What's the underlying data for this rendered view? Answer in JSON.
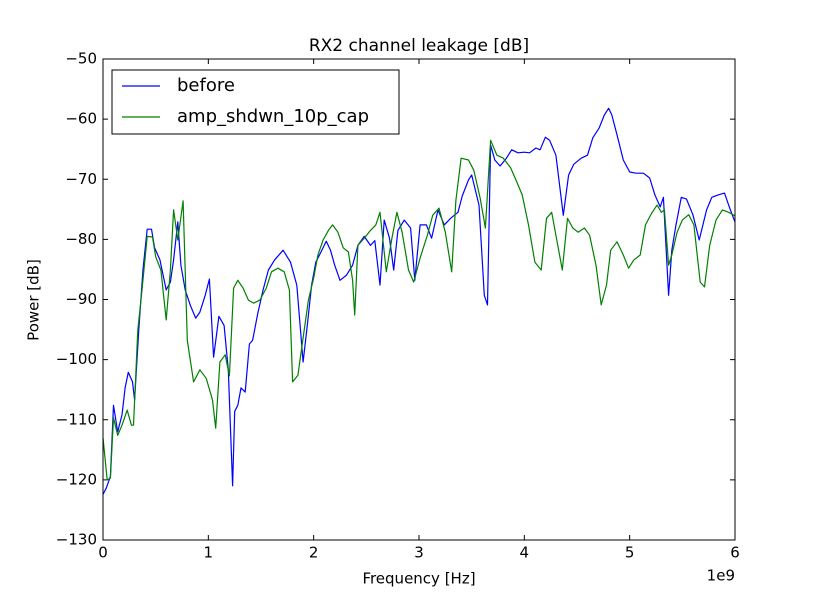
{
  "chart_data": {
    "type": "line",
    "title": "RX2 channel leakage [dB]",
    "xlabel": "Frequency [Hz]",
    "ylabel": "Power [dB]",
    "x_offset_label": "1e9",
    "xlim": [
      0,
      6000000000.0
    ],
    "ylim": [
      -130,
      -50
    ],
    "xticks": [
      0,
      {
        "value": 1000000000.0,
        "label": "1"
      },
      {
        "value": 2000000000.0,
        "label": "2"
      },
      {
        "value": 3000000000.0,
        "label": "3"
      },
      {
        "value": 4000000000.0,
        "label": "4"
      },
      {
        "value": 5000000000.0,
        "label": "5"
      },
      {
        "value": 6000000000.0,
        "label": "6"
      }
    ],
    "yticks": [
      {
        "value": -130,
        "label": "−130"
      },
      {
        "value": -120,
        "label": "−120"
      },
      {
        "value": -110,
        "label": "−110"
      },
      {
        "value": -100,
        "label": "−100"
      },
      {
        "value": -90,
        "label": "−90"
      },
      {
        "value": -80,
        "label": "−80"
      },
      {
        "value": -70,
        "label": "−70"
      },
      {
        "value": -60,
        "label": "−60"
      },
      {
        "value": -50,
        "label": "−50"
      }
    ],
    "legend": "upper left",
    "series": [
      {
        "name": "before",
        "color": "#0000ff",
        "x": [
          0,
          30000000.0,
          70000000.0,
          100000000.0,
          140000000.0,
          180000000.0,
          210000000.0,
          240000000.0,
          280000000.0,
          300000000.0,
          340000000.0,
          380000000.0,
          420000000.0,
          460000000.0,
          490000000.0,
          540000000.0,
          600000000.0,
          640000000.0,
          670000000.0,
          710000000.0,
          740000000.0,
          780000000.0,
          830000000.0,
          880000000.0,
          920000000.0,
          970000000.0,
          1010000000.0,
          1050000000.0,
          1100000000.0,
          1150000000.0,
          1190000000.0,
          1230000000.0,
          1250000000.0,
          1280000000.0,
          1310000000.0,
          1350000000.0,
          1390000000.0,
          1420000000.0,
          1470000000.0,
          1520000000.0,
          1570000000.0,
          1630000000.0,
          1710000000.0,
          1780000000.0,
          1840000000.0,
          1900000000.0,
          1940000000.0,
          1980000000.0,
          2020000000.0,
          2070000000.0,
          2120000000.0,
          2160000000.0,
          2200000000.0,
          2250000000.0,
          2310000000.0,
          2370000000.0,
          2420000000.0,
          2480000000.0,
          2540000000.0,
          2580000000.0,
          2630000000.0,
          2670000000.0,
          2720000000.0,
          2760000000.0,
          2800000000.0,
          2860000000.0,
          2920000000.0,
          2960000000.0,
          3010000000.0,
          3070000000.0,
          3120000000.0,
          3180000000.0,
          3240000000.0,
          3300000000.0,
          3370000000.0,
          3410000000.0,
          3470000000.0,
          3500000000.0,
          3570000000.0,
          3620000000.0,
          3650000000.0,
          3680000000.0,
          3720000000.0,
          3770000000.0,
          3830000000.0,
          3880000000.0,
          3940000000.0,
          4000000000.0,
          4050000000.0,
          4110000000.0,
          4150000000.0,
          4200000000.0,
          4240000000.0,
          4300000000.0,
          4370000000.0,
          4420000000.0,
          4470000000.0,
          4540000000.0,
          4600000000.0,
          4650000000.0,
          4710000000.0,
          4760000000.0,
          4800000000.0,
          4830000000.0,
          4880000000.0,
          4940000000.0,
          5000000000.0,
          5060000000.0,
          5130000000.0,
          5190000000.0,
          5240000000.0,
          5290000000.0,
          5320000000.0,
          5370000000.0,
          5400000000.0,
          5440000000.0,
          5490000000.0,
          5540000000.0,
          5600000000.0,
          5660000000.0,
          5730000000.0,
          5780000000.0,
          5840000000.0,
          5900000000.0,
          5950000000.0,
          6000000000.0
        ],
        "values": [
          -122.4,
          -121.4,
          -119.4,
          -107.6,
          -112,
          -109.2,
          -104.7,
          -102.1,
          -103.7,
          -106.7,
          -95,
          -85,
          -78.3,
          -78.3,
          -81.4,
          -83.4,
          -88.4,
          -87.1,
          -83.4,
          -77.1,
          -84.3,
          -88.4,
          -91,
          -93.1,
          -92.1,
          -89.3,
          -86.6,
          -99.6,
          -92.8,
          -94.3,
          -101.7,
          -121,
          -108.6,
          -107.6,
          -104.7,
          -105.4,
          -97.4,
          -96.8,
          -92.3,
          -88.4,
          -85.1,
          -83.4,
          -81.8,
          -83.8,
          -87.6,
          -100.4,
          -94.3,
          -87.6,
          -83.8,
          -82.1,
          -80.3,
          -81.8,
          -84.3,
          -86.8,
          -86,
          -84.3,
          -81,
          -79.5,
          -81,
          -80.2,
          -87.6,
          -76.8,
          -79.8,
          -85.1,
          -78.5,
          -76.8,
          -78.1,
          -86.8,
          -77.6,
          -77.6,
          -79.8,
          -75.1,
          -77.6,
          -76.5,
          -75.5,
          -72.8,
          -70.1,
          -69.3,
          -74.3,
          -89.3,
          -90.9,
          -64.3,
          -66.8,
          -67.8,
          -66.5,
          -65.1,
          -65.6,
          -65.5,
          -65.6,
          -64.8,
          -65.1,
          -63,
          -63.5,
          -66,
          -76,
          -69.3,
          -67.5,
          -66.5,
          -66,
          -63.1,
          -61.5,
          -59.3,
          -58.2,
          -59.3,
          -62.6,
          -66.8,
          -68.8,
          -69,
          -69,
          -69.8,
          -72.6,
          -74.6,
          -73,
          -89.3,
          -81.8,
          -77.6,
          -73,
          -73.3,
          -75.9,
          -80.1,
          -75.1,
          -73,
          -72.6,
          -72.3,
          -74.8,
          -77.1
        ]
      },
      {
        "name": "amp_shdwn_10p_cap",
        "color": "#008000",
        "x": [
          0,
          40000000.0,
          70000000.0,
          100000000.0,
          140000000.0,
          180000000.0,
          230000000.0,
          270000000.0,
          290000000.0,
          330000000.0,
          370000000.0,
          420000000.0,
          470000000.0,
          500000000.0,
          550000000.0,
          600000000.0,
          640000000.0,
          670000000.0,
          710000000.0,
          760000000.0,
          800000000.0,
          860000000.0,
          920000000.0,
          980000000.0,
          1040000000.0,
          1070000000.0,
          1110000000.0,
          1160000000.0,
          1200000000.0,
          1240000000.0,
          1280000000.0,
          1330000000.0,
          1380000000.0,
          1430000000.0,
          1490000000.0,
          1550000000.0,
          1600000000.0,
          1660000000.0,
          1720000000.0,
          1770000000.0,
          1800000000.0,
          1850000000.0,
          1900000000.0,
          1950000000.0,
          2000000000.0,
          2040000000.0,
          2090000000.0,
          2140000000.0,
          2180000000.0,
          2230000000.0,
          2280000000.0,
          2330000000.0,
          2370000000.0,
          2390000000.0,
          2420000000.0,
          2480000000.0,
          2540000000.0,
          2590000000.0,
          2630000000.0,
          2690000000.0,
          2740000000.0,
          2790000000.0,
          2840000000.0,
          2900000000.0,
          2950000000.0,
          3010000000.0,
          3080000000.0,
          3130000000.0,
          3190000000.0,
          3250000000.0,
          3310000000.0,
          3350000000.0,
          3400000000.0,
          3470000000.0,
          3520000000.0,
          3580000000.0,
          3630000000.0,
          3680000000.0,
          3740000000.0,
          3800000000.0,
          3870000000.0,
          3920000000.0,
          3980000000.0,
          4040000000.0,
          4100000000.0,
          4160000000.0,
          4210000000.0,
          4260000000.0,
          4300000000.0,
          4360000000.0,
          4410000000.0,
          4460000000.0,
          4510000000.0,
          4570000000.0,
          4620000000.0,
          4680000000.0,
          4730000000.0,
          4780000000.0,
          4820000000.0,
          4880000000.0,
          4940000000.0,
          4990000000.0,
          5040000000.0,
          5100000000.0,
          5150000000.0,
          5210000000.0,
          5260000000.0,
          5300000000.0,
          5330000000.0,
          5370000000.0,
          5400000000.0,
          5450000000.0,
          5500000000.0,
          5560000000.0,
          5610000000.0,
          5670000000.0,
          5710000000.0,
          5760000000.0,
          5820000000.0,
          5880000000.0,
          5940000000.0,
          6000000000.0
        ],
        "values": [
          -113,
          -120,
          -119.7,
          -109.7,
          -112.6,
          -110.9,
          -108.4,
          -110.9,
          -110.9,
          -95.1,
          -88.4,
          -79.5,
          -79.6,
          -82.9,
          -85.1,
          -93.4,
          -85.1,
          -75.1,
          -80.1,
          -73.6,
          -96.8,
          -103.7,
          -101.7,
          -103.1,
          -106.7,
          -111.4,
          -100.4,
          -99.2,
          -102.7,
          -88.1,
          -86.8,
          -88.1,
          -90.1,
          -90.6,
          -90.1,
          -88.1,
          -85.4,
          -84.8,
          -85.4,
          -88.4,
          -103.7,
          -102.6,
          -96.4,
          -90.1,
          -86.4,
          -82.6,
          -80.1,
          -78.5,
          -77.6,
          -78.8,
          -81.4,
          -82.1,
          -86.8,
          -92.6,
          -81,
          -79.8,
          -78.5,
          -77.6,
          -75.5,
          -85.4,
          -80.1,
          -75.5,
          -78.8,
          -85.1,
          -87.1,
          -83.1,
          -79.3,
          -76,
          -74.8,
          -78.8,
          -85.4,
          -73.5,
          -66.5,
          -66.8,
          -68.5,
          -73.1,
          -78.1,
          -63.5,
          -66,
          -66.5,
          -68.1,
          -70.1,
          -72.6,
          -77.6,
          -83.8,
          -85.1,
          -76.5,
          -75.5,
          -79.3,
          -85.1,
          -76.5,
          -78.1,
          -78.8,
          -78.1,
          -79.3,
          -84.3,
          -90.9,
          -87.6,
          -81.8,
          -80.4,
          -82.6,
          -84.8,
          -83.4,
          -82.6,
          -77.6,
          -75.6,
          -74.3,
          -75.5,
          -75.1,
          -84.3,
          -82.6,
          -78.8,
          -76.8,
          -75.9,
          -77.6,
          -87.1,
          -87.9,
          -81,
          -76.8,
          -75.1,
          -75.5,
          -76.1
        ]
      }
    ]
  }
}
